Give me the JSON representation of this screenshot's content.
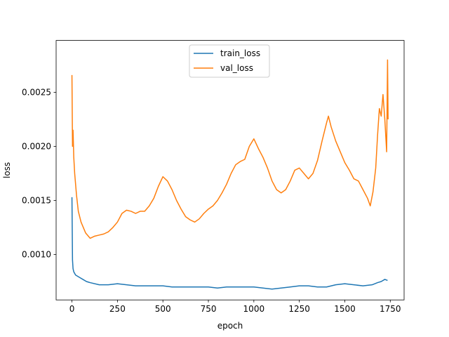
{
  "chart_data": {
    "type": "line",
    "title": "",
    "xlabel": "epoch",
    "ylabel": "loss",
    "xlim": [
      -87,
      1826
    ],
    "ylim": [
      0.00058,
      0.00298
    ],
    "xticks": [
      0,
      250,
      500,
      750,
      1000,
      1250,
      1500,
      1750
    ],
    "xtick_labels": [
      "0",
      "250",
      "500",
      "750",
      "1000",
      "1250",
      "1500",
      "1750"
    ],
    "yticks": [
      0.001,
      0.0015,
      0.002,
      0.0025
    ],
    "ytick_labels": [
      "0.0010",
      "0.0015",
      "0.0020",
      "0.0025"
    ],
    "grid": false,
    "legend_position": "top-center",
    "series": [
      {
        "name": "train_loss",
        "color": "#1f77b4",
        "points": [
          [
            0,
            0.00153
          ],
          [
            3,
            0.00095
          ],
          [
            6,
            0.00087
          ],
          [
            10,
            0.00084
          ],
          [
            20,
            0.00081
          ],
          [
            40,
            0.00079
          ],
          [
            60,
            0.00077
          ],
          [
            80,
            0.00075
          ],
          [
            100,
            0.00074
          ],
          [
            150,
            0.00072
          ],
          [
            200,
            0.00072
          ],
          [
            250,
            0.00073
          ],
          [
            300,
            0.00072
          ],
          [
            350,
            0.00071
          ],
          [
            400,
            0.00071
          ],
          [
            450,
            0.00071
          ],
          [
            500,
            0.00071
          ],
          [
            550,
            0.0007
          ],
          [
            600,
            0.0007
          ],
          [
            650,
            0.0007
          ],
          [
            700,
            0.0007
          ],
          [
            750,
            0.0007
          ],
          [
            800,
            0.00069
          ],
          [
            850,
            0.0007
          ],
          [
            900,
            0.0007
          ],
          [
            950,
            0.0007
          ],
          [
            1000,
            0.0007
          ],
          [
            1050,
            0.00069
          ],
          [
            1100,
            0.00068
          ],
          [
            1150,
            0.00069
          ],
          [
            1200,
            0.0007
          ],
          [
            1250,
            0.00071
          ],
          [
            1300,
            0.00071
          ],
          [
            1350,
            0.0007
          ],
          [
            1400,
            0.0007
          ],
          [
            1450,
            0.00072
          ],
          [
            1500,
            0.00073
          ],
          [
            1550,
            0.00072
          ],
          [
            1600,
            0.00071
          ],
          [
            1650,
            0.00072
          ],
          [
            1680,
            0.00074
          ],
          [
            1700,
            0.00075
          ],
          [
            1720,
            0.00077
          ],
          [
            1735,
            0.00076
          ]
        ]
      },
      {
        "name": "val_loss",
        "color": "#ff7f0e",
        "points": [
          [
            0,
            0.00266
          ],
          [
            3,
            0.002
          ],
          [
            6,
            0.00215
          ],
          [
            10,
            0.0019
          ],
          [
            15,
            0.00175
          ],
          [
            25,
            0.00155
          ],
          [
            35,
            0.0014
          ],
          [
            50,
            0.0013
          ],
          [
            75,
            0.0012
          ],
          [
            100,
            0.00115
          ],
          [
            125,
            0.00117
          ],
          [
            150,
            0.00118
          ],
          [
            175,
            0.00119
          ],
          [
            200,
            0.00121
          ],
          [
            225,
            0.00125
          ],
          [
            250,
            0.0013
          ],
          [
            275,
            0.00138
          ],
          [
            300,
            0.00141
          ],
          [
            325,
            0.0014
          ],
          [
            350,
            0.00138
          ],
          [
            375,
            0.0014
          ],
          [
            400,
            0.0014
          ],
          [
            425,
            0.00145
          ],
          [
            450,
            0.00152
          ],
          [
            475,
            0.00163
          ],
          [
            500,
            0.00172
          ],
          [
            525,
            0.00168
          ],
          [
            550,
            0.0016
          ],
          [
            575,
            0.0015
          ],
          [
            600,
            0.00142
          ],
          [
            625,
            0.00135
          ],
          [
            650,
            0.00132
          ],
          [
            675,
            0.0013
          ],
          [
            700,
            0.00133
          ],
          [
            725,
            0.00138
          ],
          [
            750,
            0.00142
          ],
          [
            775,
            0.00145
          ],
          [
            800,
            0.0015
          ],
          [
            825,
            0.00157
          ],
          [
            850,
            0.00165
          ],
          [
            875,
            0.00175
          ],
          [
            900,
            0.00183
          ],
          [
            925,
            0.00186
          ],
          [
            950,
            0.00188
          ],
          [
            975,
            0.002
          ],
          [
            1000,
            0.00207
          ],
          [
            1025,
            0.00198
          ],
          [
            1050,
            0.0019
          ],
          [
            1075,
            0.0018
          ],
          [
            1100,
            0.00168
          ],
          [
            1125,
            0.0016
          ],
          [
            1150,
            0.00157
          ],
          [
            1175,
            0.0016
          ],
          [
            1200,
            0.00168
          ],
          [
            1225,
            0.00178
          ],
          [
            1250,
            0.0018
          ],
          [
            1275,
            0.00175
          ],
          [
            1300,
            0.0017
          ],
          [
            1325,
            0.00175
          ],
          [
            1350,
            0.00187
          ],
          [
            1375,
            0.00205
          ],
          [
            1400,
            0.00222
          ],
          [
            1410,
            0.00228
          ],
          [
            1425,
            0.00218
          ],
          [
            1450,
            0.00205
          ],
          [
            1475,
            0.00195
          ],
          [
            1500,
            0.00185
          ],
          [
            1525,
            0.00178
          ],
          [
            1550,
            0.0017
          ],
          [
            1575,
            0.00168
          ],
          [
            1600,
            0.0016
          ],
          [
            1625,
            0.00152
          ],
          [
            1640,
            0.00145
          ],
          [
            1655,
            0.00158
          ],
          [
            1670,
            0.0018
          ],
          [
            1680,
            0.0021
          ],
          [
            1690,
            0.00235
          ],
          [
            1700,
            0.00228
          ],
          [
            1710,
            0.00248
          ],
          [
            1720,
            0.00225
          ],
          [
            1730,
            0.00195
          ],
          [
            1735,
            0.0028
          ],
          [
            1738,
            0.00225
          ]
        ]
      }
    ]
  }
}
